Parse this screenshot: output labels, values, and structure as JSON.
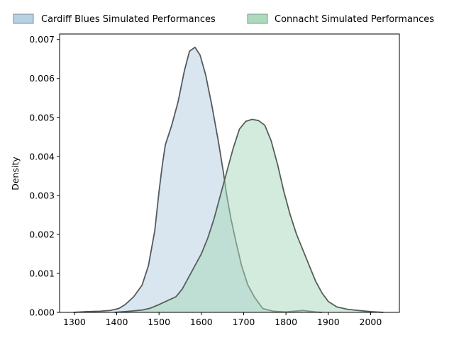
{
  "chart_data": {
    "type": "area",
    "title": "",
    "xlabel": "",
    "ylabel": "Density",
    "xlim": [
      1265,
      2068
    ],
    "ylim": [
      0,
      0.00714
    ],
    "x_ticks": [
      1300,
      1400,
      1500,
      1600,
      1700,
      1800,
      1900,
      2000
    ],
    "y_ticks": [
      0.0,
      0.001,
      0.002,
      0.003,
      0.004,
      0.005,
      0.006,
      0.007
    ],
    "y_tick_labels": [
      "0.000",
      "0.001",
      "0.002",
      "0.003",
      "0.004",
      "0.005",
      "0.006",
      "0.007"
    ],
    "legend_position": "top, above plot",
    "grid": false,
    "series": [
      {
        "name": "Cardiff Blues Simulated Performances",
        "fill_color": "#b3cde0",
        "legend_color": "#b3cde0",
        "line_color": "#555a5e",
        "points": [
          [
            1298,
            0.0
          ],
          [
            1330,
            2e-05
          ],
          [
            1360,
            3e-05
          ],
          [
            1385,
            5e-05
          ],
          [
            1405,
            0.0001
          ],
          [
            1420,
            0.0002
          ],
          [
            1440,
            0.0004
          ],
          [
            1460,
            0.0007
          ],
          [
            1475,
            0.0012
          ],
          [
            1490,
            0.0021
          ],
          [
            1500,
            0.0031
          ],
          [
            1508,
            0.0038
          ],
          [
            1515,
            0.0043
          ],
          [
            1530,
            0.0048
          ],
          [
            1545,
            0.0054
          ],
          [
            1560,
            0.0062
          ],
          [
            1572,
            0.0067
          ],
          [
            1585,
            0.0068
          ],
          [
            1597,
            0.0066
          ],
          [
            1610,
            0.0061
          ],
          [
            1625,
            0.0053
          ],
          [
            1640,
            0.0044
          ],
          [
            1652,
            0.0036
          ],
          [
            1660,
            0.003
          ],
          [
            1670,
            0.0024
          ],
          [
            1682,
            0.0018
          ],
          [
            1695,
            0.0012
          ],
          [
            1710,
            0.0007
          ],
          [
            1725,
            0.0004
          ],
          [
            1745,
            0.0001
          ],
          [
            1770,
            3e-05
          ],
          [
            1800,
            1e-05
          ],
          [
            1840,
            5e-05
          ],
          [
            1870,
            1e-05
          ],
          [
            1885,
            0.0
          ]
        ]
      },
      {
        "name": "Connacht Simulated Performances",
        "fill_color": "#a8d8b9",
        "legend_color": "#a8d8b9",
        "line_color": "#555f5a",
        "points": [
          [
            1395,
            0.0
          ],
          [
            1430,
            3e-05
          ],
          [
            1460,
            6e-05
          ],
          [
            1480,
            0.00011
          ],
          [
            1500,
            0.0002
          ],
          [
            1520,
            0.0003
          ],
          [
            1540,
            0.0004
          ],
          [
            1555,
            0.0006
          ],
          [
            1570,
            0.0009
          ],
          [
            1585,
            0.0012
          ],
          [
            1600,
            0.0015
          ],
          [
            1615,
            0.0019
          ],
          [
            1630,
            0.0024
          ],
          [
            1645,
            0.003
          ],
          [
            1660,
            0.0036
          ],
          [
            1675,
            0.0042
          ],
          [
            1690,
            0.0047
          ],
          [
            1705,
            0.0049
          ],
          [
            1720,
            0.00495
          ],
          [
            1735,
            0.00492
          ],
          [
            1750,
            0.0048
          ],
          [
            1765,
            0.0044
          ],
          [
            1780,
            0.0038
          ],
          [
            1795,
            0.0031
          ],
          [
            1810,
            0.0025
          ],
          [
            1825,
            0.002
          ],
          [
            1840,
            0.0016
          ],
          [
            1855,
            0.0012
          ],
          [
            1870,
            0.0008
          ],
          [
            1885,
            0.0005
          ],
          [
            1900,
            0.00028
          ],
          [
            1920,
            0.00014
          ],
          [
            1945,
            8e-05
          ],
          [
            1970,
            5e-05
          ],
          [
            2000,
            2e-05
          ],
          [
            2030,
            0.0
          ]
        ]
      }
    ]
  }
}
